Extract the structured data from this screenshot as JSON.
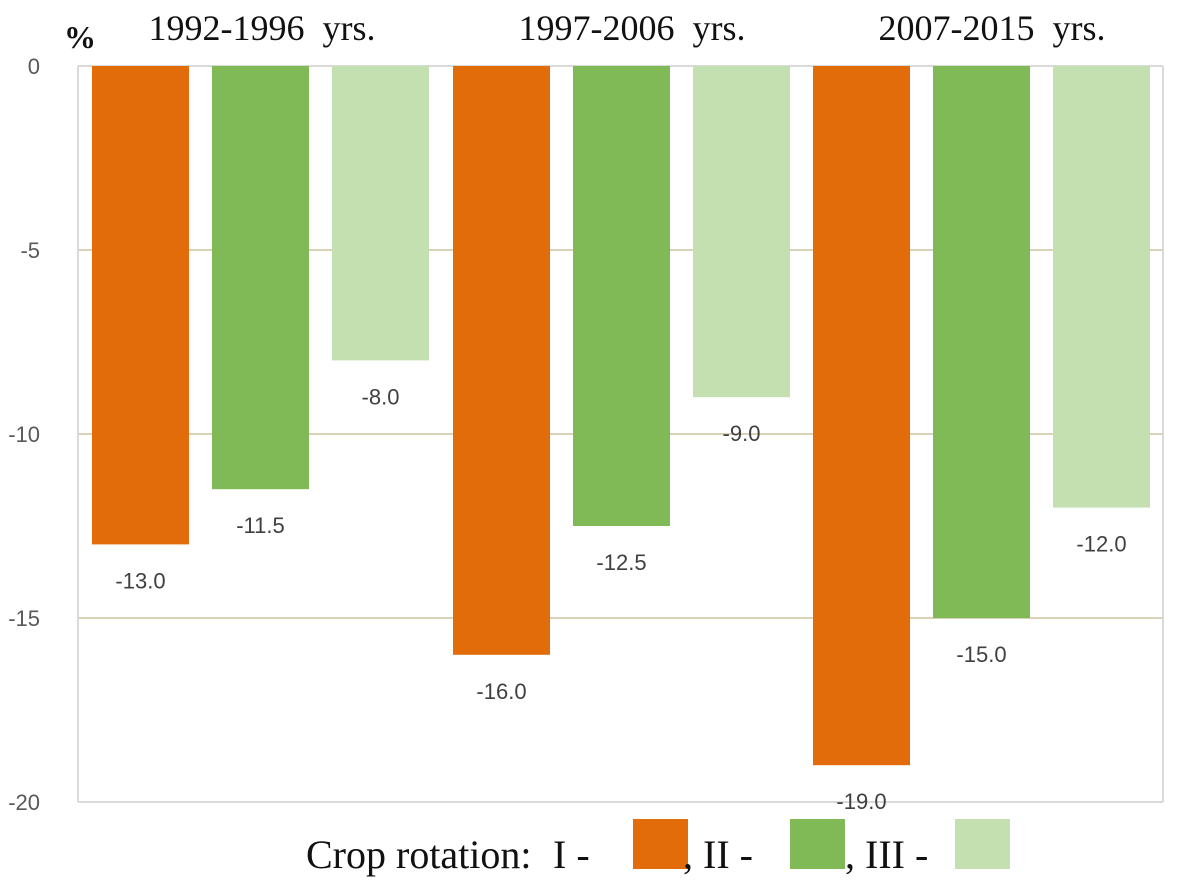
{
  "chart_data": {
    "type": "bar",
    "y_unit": "%",
    "ylim": [
      -20,
      0
    ],
    "y_ticks": [
      0,
      -5,
      -10,
      -15,
      -20
    ],
    "grid": true,
    "groups": [
      "1992-1996  yrs.",
      "1997-2006  yrs.",
      "2007-2015  yrs."
    ],
    "series": [
      {
        "name": "I",
        "color": "#e36c0a",
        "values": [
          -13.0,
          -16.0,
          -19.0
        ],
        "labels": [
          "-13.0",
          "-16.0",
          "-19.0"
        ]
      },
      {
        "name": "II",
        "color": "#7fba57",
        "values": [
          -11.5,
          -12.5,
          -15.0
        ],
        "labels": [
          "-11.5",
          "-12.5",
          "-15.0"
        ]
      },
      {
        "name": "III",
        "color": "#c4e0b0",
        "values": [
          -8.0,
          -9.0,
          -12.0
        ],
        "labels": [
          "-8.0",
          "-9.0",
          "-12.0"
        ]
      }
    ],
    "legend": {
      "position": "bottom",
      "prefix": "Crop rotation:",
      "items": [
        "I -",
        ", II -",
        ", III -"
      ]
    }
  }
}
